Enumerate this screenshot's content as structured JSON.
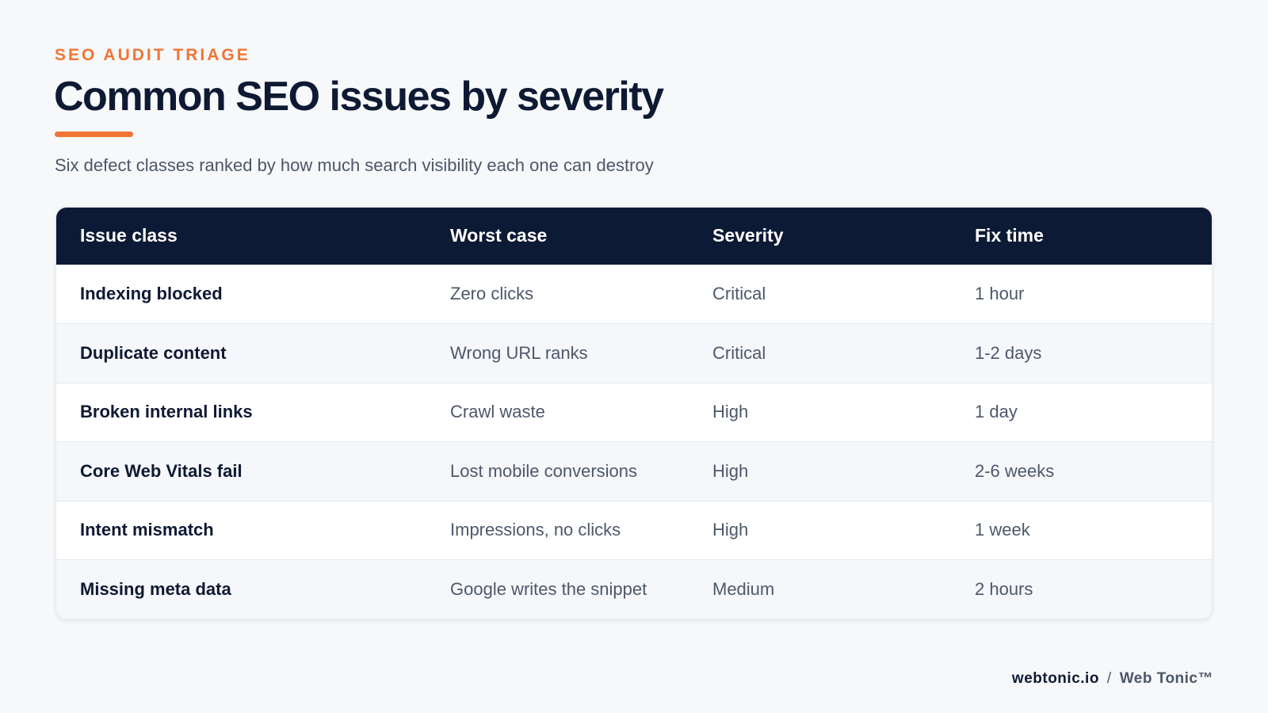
{
  "header": {
    "eyebrow": "SEO AUDIT TRIAGE",
    "title": "Common SEO issues by severity",
    "subtitle": "Six defect classes ranked by how much search visibility each one can destroy"
  },
  "table": {
    "columns": [
      "Issue class",
      "Worst case",
      "Severity",
      "Fix time"
    ],
    "rows": [
      [
        "Indexing blocked",
        "Zero clicks",
        "Critical",
        "1 hour"
      ],
      [
        "Duplicate content",
        "Wrong URL ranks",
        "Critical",
        "1-2 days"
      ],
      [
        "Broken internal links",
        "Crawl waste",
        "High",
        "1 day"
      ],
      [
        "Core Web Vitals fail",
        "Lost mobile conversions",
        "High",
        "2-6 weeks"
      ],
      [
        "Intent mismatch",
        "Impressions, no clicks",
        "High",
        "1 week"
      ],
      [
        "Missing meta data",
        "Google writes the snippet",
        "Medium",
        "2 hours"
      ]
    ]
  },
  "footer": {
    "site": "webtonic.io",
    "separator": "/",
    "brand": "Web Tonic™"
  },
  "colors": {
    "accent": "#f07535",
    "navy": "#0d1a35",
    "background": "#f6f8fa"
  }
}
